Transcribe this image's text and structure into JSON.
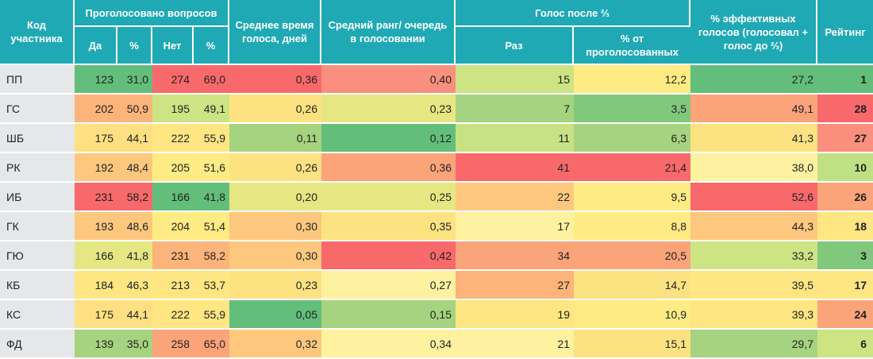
{
  "headers": {
    "code": "Код участника",
    "voted": "Проголосовано вопросов",
    "yes": "Да",
    "pct1": "%",
    "no": "Нет",
    "pct2": "%",
    "avg_time": "Среднее время голоса, дней",
    "avg_rank": "Средний ранг/ очередь в голосовании",
    "after": "Голос после ⅔",
    "times": "Раз",
    "pct_voted": "% от проголосованных",
    "effective": "% эффективных голосов (голосовал + голос до ⅔)",
    "rating": "Рейтинг"
  },
  "columns": [
    "code",
    "yes",
    "yes_pct",
    "no",
    "no_pct",
    "avg_time",
    "avg_rank",
    "after_times",
    "after_pct",
    "effective",
    "rating"
  ],
  "rows": [
    {
      "code": "ПП",
      "yes": "123",
      "yes_pct": "31,0",
      "no": "274",
      "no_pct": "69,0",
      "avg_time": "0,36",
      "avg_rank": "0,40",
      "after_times": "15",
      "after_pct": "12,2",
      "effective": "27,2",
      "rating": "1"
    },
    {
      "code": "ГС",
      "yes": "202",
      "yes_pct": "50,9",
      "no": "195",
      "no_pct": "49,1",
      "avg_time": "0,26",
      "avg_rank": "0,23",
      "after_times": "7",
      "after_pct": "3,5",
      "effective": "49,1",
      "rating": "28"
    },
    {
      "code": "ШБ",
      "yes": "175",
      "yes_pct": "44,1",
      "no": "222",
      "no_pct": "55,9",
      "avg_time": "0,11",
      "avg_rank": "0,12",
      "after_times": "11",
      "after_pct": "6,3",
      "effective": "41,3",
      "rating": "27"
    },
    {
      "code": "РК",
      "yes": "192",
      "yes_pct": "48,4",
      "no": "205",
      "no_pct": "51,6",
      "avg_time": "0,26",
      "avg_rank": "0,36",
      "after_times": "41",
      "after_pct": "21,4",
      "effective": "38,0",
      "rating": "10"
    },
    {
      "code": "ИБ",
      "yes": "231",
      "yes_pct": "58,2",
      "no": "166",
      "no_pct": "41,8",
      "avg_time": "0,20",
      "avg_rank": "0,25",
      "after_times": "22",
      "after_pct": "9,5",
      "effective": "52,6",
      "rating": "26"
    },
    {
      "code": "ГК",
      "yes": "193",
      "yes_pct": "48,6",
      "no": "204",
      "no_pct": "51,4",
      "avg_time": "0,30",
      "avg_rank": "0,35",
      "after_times": "17",
      "after_pct": "8,8",
      "effective": "44,3",
      "rating": "18"
    },
    {
      "code": "ГЮ",
      "yes": "166",
      "yes_pct": "41,8",
      "no": "231",
      "no_pct": "58,2",
      "avg_time": "0,30",
      "avg_rank": "0,42",
      "after_times": "34",
      "after_pct": "20,5",
      "effective": "33,2",
      "rating": "3"
    },
    {
      "code": "КБ",
      "yes": "184",
      "yes_pct": "46,3",
      "no": "213",
      "no_pct": "53,7",
      "avg_time": "0,23",
      "avg_rank": "0,27",
      "after_times": "27",
      "after_pct": "14,7",
      "effective": "39,5",
      "rating": "17"
    },
    {
      "code": "КС",
      "yes": "175",
      "yes_pct": "44,1",
      "no": "222",
      "no_pct": "55,9",
      "avg_time": "0,05",
      "avg_rank": "0,15",
      "after_times": "19",
      "after_pct": "10,9",
      "effective": "39,3",
      "rating": "24"
    },
    {
      "code": "ФД",
      "yes": "139",
      "yes_pct": "35,0",
      "no": "258",
      "no_pct": "65,0",
      "avg_time": "0,32",
      "avg_rank": "0,34",
      "after_times": "21",
      "after_pct": "15,1",
      "effective": "29,7",
      "rating": "6"
    }
  ],
  "cell_colors": [
    [
      "#e6e7e8",
      "#63be7b",
      "#63be7b",
      "#f8696b",
      "#f8696b",
      "#f8696b",
      "#fa8f7d",
      "#cde484",
      "#ffeb84",
      "#63be7b",
      "#63be7b"
    ],
    [
      "#e6e7e8",
      "#fcb47a",
      "#fcb47a",
      "#cde484",
      "#cde484",
      "#fde282",
      "#e6e783",
      "#a6d37f",
      "#80c87c",
      "#fba47a",
      "#f8696b"
    ],
    [
      "#e6e7e8",
      "#fee082",
      "#fee082",
      "#fee682",
      "#fee682",
      "#a6d37f",
      "#63be7b",
      "#c7e283",
      "#a6d37f",
      "#fde282",
      "#fa8f7d"
    ],
    [
      "#e6e7e8",
      "#fdc87e",
      "#fdc87e",
      "#ffeb84",
      "#ffeb84",
      "#fde282",
      "#fba47a",
      "#f8696b",
      "#f8696b",
      "#fef2a0",
      "#c0e084"
    ],
    [
      "#e6e7e8",
      "#f8696b",
      "#f8696b",
      "#63be7b",
      "#63be7b",
      "#e6e783",
      "#e6e783",
      "#fdc87e",
      "#ffeb84",
      "#f8696b",
      "#fba47a"
    ],
    [
      "#e6e7e8",
      "#fdc87e",
      "#fdc87e",
      "#ffeb84",
      "#ffeb84",
      "#fdc87e",
      "#fde282",
      "#fef2a0",
      "#ffeb84",
      "#fdc87e",
      "#fee682"
    ],
    [
      "#e6e7e8",
      "#e6e783",
      "#e6e783",
      "#fcb47a",
      "#fcb47a",
      "#fdc87e",
      "#f8696b",
      "#fba47a",
      "#fba47a",
      "#cde484",
      "#80c87c"
    ],
    [
      "#e6e7e8",
      "#fee682",
      "#fee682",
      "#fee682",
      "#fee682",
      "#fde282",
      "#fef2a0",
      "#fcb47a",
      "#fde282",
      "#fee682",
      "#fee682"
    ],
    [
      "#e6e7e8",
      "#fee082",
      "#fee082",
      "#fee682",
      "#fee682",
      "#63be7b",
      "#a6d37f",
      "#fee682",
      "#ffeb84",
      "#fee682",
      "#fba47a"
    ],
    [
      "#e6e7e8",
      "#a6d37f",
      "#a6d37f",
      "#fba47a",
      "#fba47a",
      "#fdc87e",
      "#fef2a0",
      "#fef2a0",
      "#fde282",
      "#a6d37f",
      "#cde484"
    ]
  ]
}
